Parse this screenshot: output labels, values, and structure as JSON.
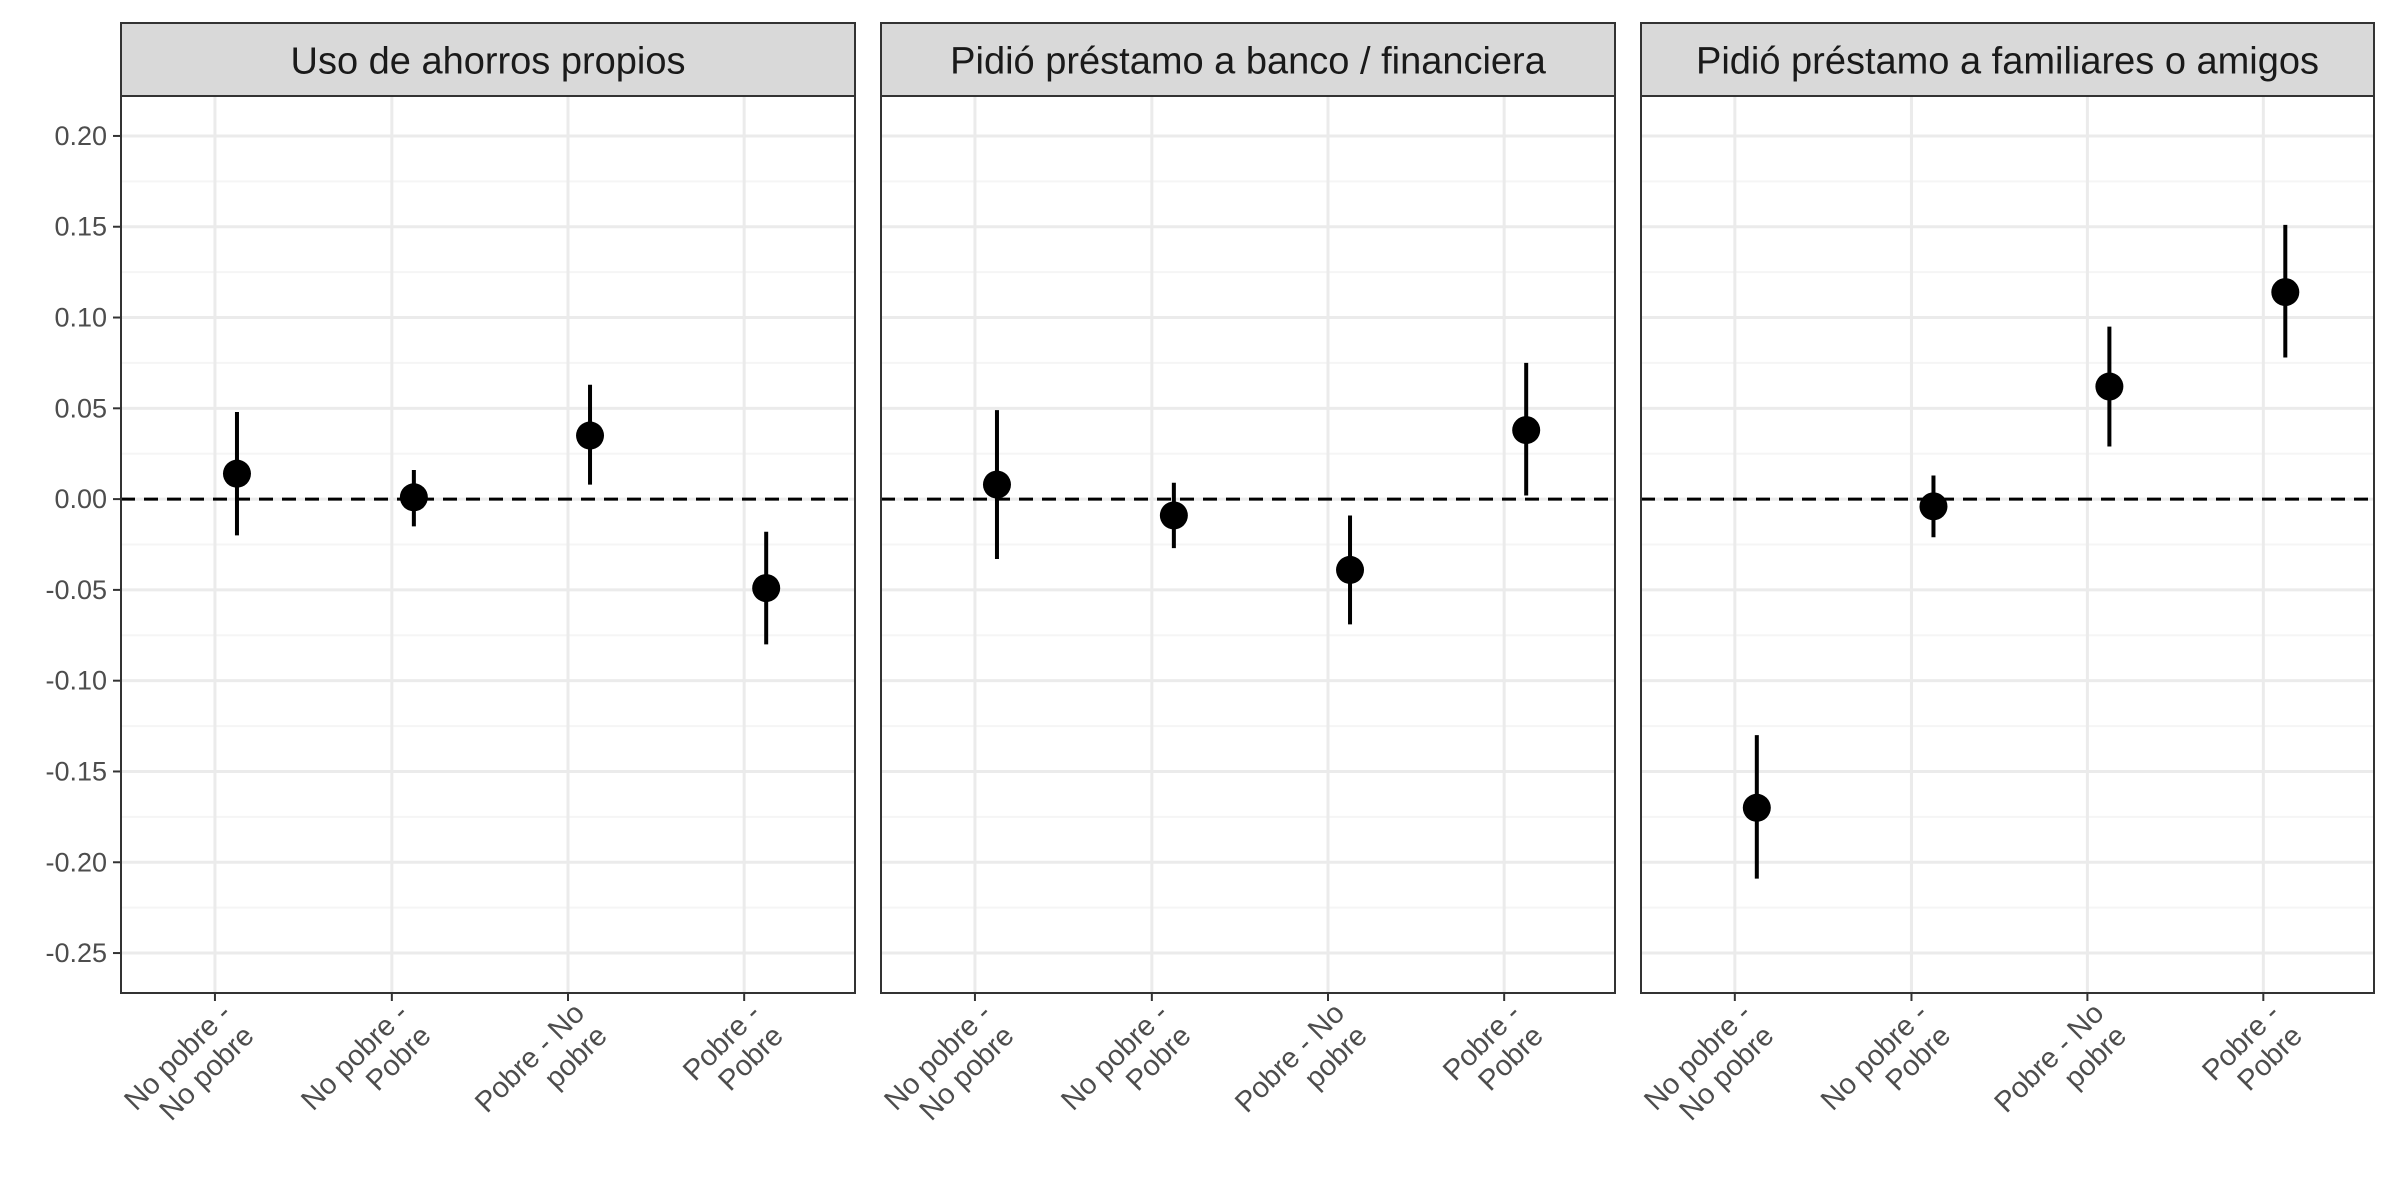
{
  "chart_data": {
    "type": "scatter",
    "subtype": "point-range facets",
    "facets": [
      {
        "title": "Uso de ahorros propios",
        "points": [
          {
            "category": "No pobre - No pobre",
            "y": 0.014,
            "low": -0.02,
            "high": 0.048
          },
          {
            "category": "No pobre - Pobre",
            "y": 0.001,
            "low": -0.015,
            "high": 0.016
          },
          {
            "category": "Pobre - No pobre",
            "y": 0.035,
            "low": 0.008,
            "high": 0.063
          },
          {
            "category": "Pobre - Pobre",
            "y": -0.049,
            "low": -0.08,
            "high": -0.018
          }
        ]
      },
      {
        "title": "Pidió préstamo a banco / financiera",
        "points": [
          {
            "category": "No pobre - No pobre",
            "y": 0.008,
            "low": -0.033,
            "high": 0.049
          },
          {
            "category": "No pobre - Pobre",
            "y": -0.009,
            "low": -0.027,
            "high": 0.009
          },
          {
            "category": "Pobre - No pobre",
            "y": -0.039,
            "low": -0.069,
            "high": -0.009
          },
          {
            "category": "Pobre - Pobre",
            "y": 0.038,
            "low": 0.002,
            "high": 0.075
          }
        ]
      },
      {
        "title": "Pidió préstamo a familiares o amigos",
        "points": [
          {
            "category": "No pobre - No pobre",
            "y": -0.17,
            "low": -0.209,
            "high": -0.13
          },
          {
            "category": "No pobre - Pobre",
            "y": -0.004,
            "low": -0.021,
            "high": 0.013
          },
          {
            "category": "Pobre - No pobre",
            "y": 0.062,
            "low": 0.029,
            "high": 0.095
          },
          {
            "category": "Pobre - Pobre",
            "y": 0.114,
            "low": 0.078,
            "high": 0.151
          }
        ]
      }
    ],
    "categories": [
      [
        "No pobre -",
        "No pobre"
      ],
      [
        "No pobre -",
        "Pobre"
      ],
      [
        "Pobre - No",
        "pobre"
      ],
      [
        "Pobre -",
        "Pobre"
      ]
    ],
    "y_ticks": [
      0.2,
      0.15,
      0.1,
      0.05,
      0.0,
      -0.05,
      -0.1,
      -0.15,
      -0.2,
      -0.25
    ],
    "y_tick_labels": [
      "0.20",
      "0.15",
      "0.10",
      "0.05",
      "0.00",
      "-0.05",
      "-0.10",
      "-0.15",
      "-0.20",
      "-0.25"
    ],
    "ylim": [
      -0.272,
      0.222
    ],
    "reference_line": 0,
    "point_dodge": 0.18,
    "grid": true,
    "legend": "none",
    "xlabel": "",
    "ylabel": "",
    "colors": {
      "point": "#000000",
      "strip_fill": "#d9d9d9",
      "panel_border": "#333333",
      "grid_major": "#ebebeb",
      "grid_minor": "#f5f5f5"
    }
  }
}
